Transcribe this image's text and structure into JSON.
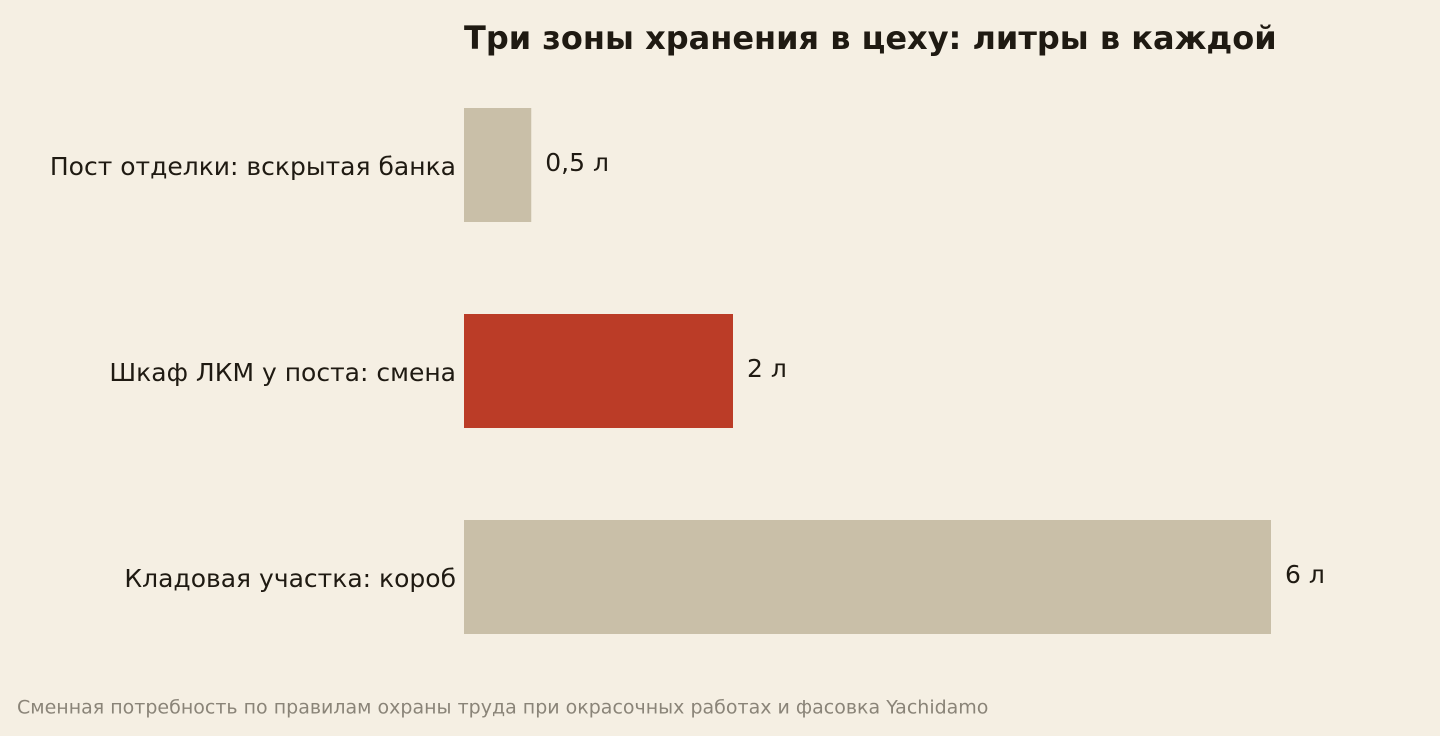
{
  "chart_data": {
    "type": "bar",
    "orientation": "horizontal",
    "title": "Три зоны хранения в цеху: литры в каждой",
    "categories": [
      "Пост отделки: вскрытая банка",
      "Шкаф ЛКМ у поста: смена",
      "Кладовая участка: короб"
    ],
    "values": [
      0.5,
      2,
      6
    ],
    "value_labels": [
      "0,5 л",
      "2 л",
      "6 л"
    ],
    "colors": [
      "#c9bfa8",
      "#bb3c27",
      "#c9bfa8"
    ],
    "source": "Сменная потребность по правилам охраны труда при окрасочных работах и фасовка Yachidamo"
  }
}
